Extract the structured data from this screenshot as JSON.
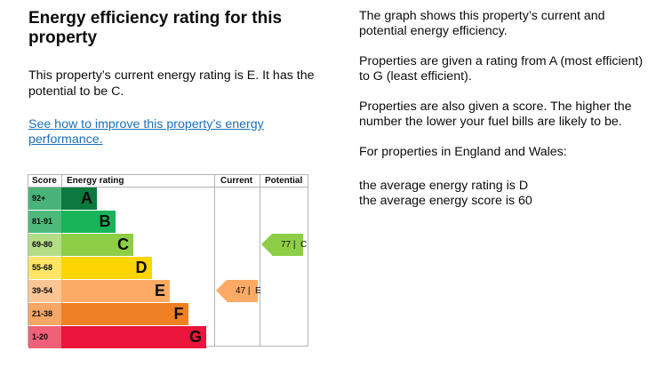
{
  "heading": "Energy efficiency rating for this property",
  "current_rating_text": "This property’s current energy rating is E. It has the potential to be C.",
  "improve_link": "See how to improve this property’s energy performance.",
  "right_paragraphs": [
    "The graph shows this property’s current and potential energy efficiency.",
    "Properties are given a rating from A (most efficient) to G (least efficient).",
    "Properties are also given a score. The higher the number the lower your fuel bills are likely to be.",
    "For properties in England and Wales:"
  ],
  "averages": {
    "rating": "the average energy rating is D",
    "score": "the average energy score is 60"
  },
  "chart_data": {
    "type": "table",
    "headers": {
      "score": "Score",
      "rating": "Energy rating",
      "current": "Current",
      "potential": "Potential"
    },
    "bands": [
      {
        "range": "92+",
        "letter": "A",
        "color": "#0c7a3e",
        "score_bg": "#49b37a"
      },
      {
        "range": "81-91",
        "letter": "B",
        "color": "#19b459",
        "score_bg": "#4dba7c"
      },
      {
        "range": "69-80",
        "letter": "C",
        "color": "#8dce46",
        "score_bg": "#b4dd87"
      },
      {
        "range": "55-68",
        "letter": "D",
        "color": "#ffd500",
        "score_bg": "#ffe566"
      },
      {
        "range": "39-54",
        "letter": "E",
        "color": "#fcaa65",
        "score_bg": "#fdc593"
      },
      {
        "range": "21-38",
        "letter": "F",
        "color": "#ef8023",
        "score_bg": "#f4a665"
      },
      {
        "range": "1-20",
        "letter": "G",
        "color": "#e9153b",
        "score_bg": "#f06079"
      }
    ],
    "current": {
      "score": 47,
      "letter": "E",
      "label": "47 |  E",
      "color": "#fcaa65"
    },
    "potential": {
      "score": 77,
      "letter": "C",
      "label": "77 |  C",
      "color": "#8dce46"
    }
  }
}
